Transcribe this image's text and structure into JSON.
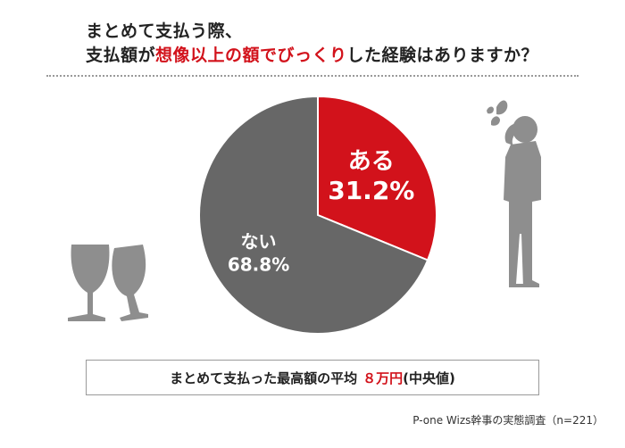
{
  "header": {
    "line1": "まとめて支払う際、",
    "line2_pre": "支払額が",
    "line2_highlight": "想像以上の額でびっくり",
    "line2_post": "した経験はありますか？"
  },
  "colors": {
    "accent": "#d2121b",
    "neutral": "#676767",
    "illustration": "#8e8e8e"
  },
  "chart_data": {
    "type": "pie",
    "slices": [
      {
        "label": "ある",
        "value": 31.2,
        "display": "31.2%",
        "color": "#d2121b"
      },
      {
        "label": "ない",
        "value": 68.8,
        "display": "68.8%",
        "color": "#676767"
      }
    ]
  },
  "summary": {
    "text": "まとめて支払った最高額の平均",
    "value": "８万円",
    "note": "(中央値)"
  },
  "source": "P-one Wizs幹事の実態調査（n=221）",
  "illustrations": [
    "wine-glasses-icon",
    "stressed-man-icon"
  ]
}
